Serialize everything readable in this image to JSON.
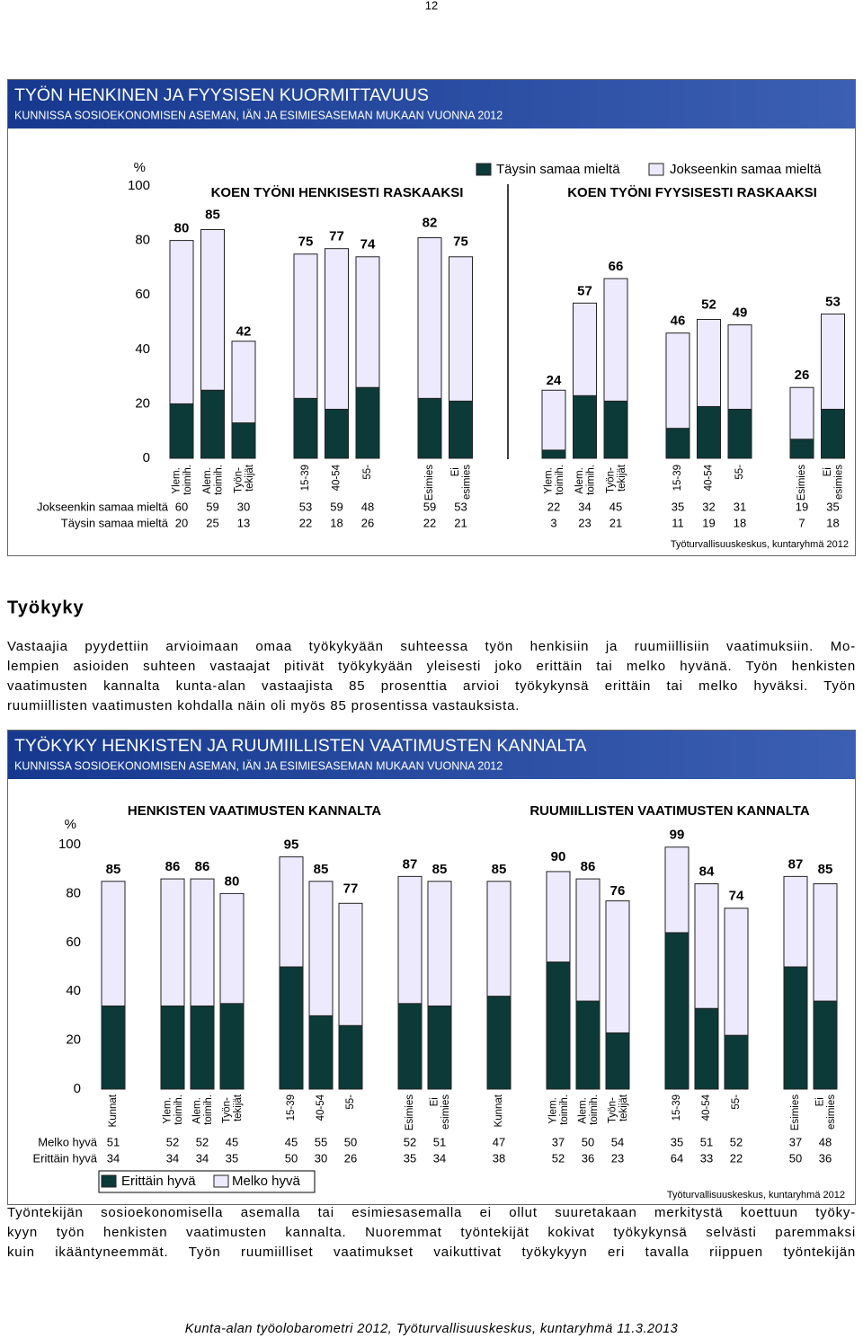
{
  "page_number": "12",
  "chart_data": [
    {
      "type": "bar",
      "stacked": true,
      "title": "TYÖN HENKINEN JA  FYYSISEN KUORMITTAVUUS",
      "subtitle": "KUNNISSA SOSIOEKONOMISEN ASEMAN, IÄN JA ESIMIESASEMAN MUKAAN VUONNA 2012",
      "y_label": "%",
      "group_titles": [
        "KOEN TYÖNI HENKISESTI RASKAAKSI",
        "KOEN TYÖNI FYYSISESTI RASKAAKSI"
      ],
      "categories": [
        "Ylem. toimih.",
        "Alem. toimih.",
        "Työn- tekijät",
        "15-39",
        "40-54",
        "55-",
        "Esimies",
        "Ei esimies",
        "Ylem. toimih.",
        "Alem. toimih.",
        "Työn- tekijät",
        "15-39",
        "40-54",
        "55-",
        "Esimies",
        "Ei esimies"
      ],
      "series": [
        {
          "name": "Täysin samaa mieltä",
          "color": "#0b3a38",
          "values": [
            20,
            25,
            13,
            22,
            18,
            26,
            22,
            21,
            3,
            23,
            21,
            11,
            19,
            18,
            7,
            18
          ]
        },
        {
          "name": "Jokseenkin samaa mieltä",
          "color": "#eceafc",
          "values": [
            60,
            59,
            30,
            53,
            59,
            48,
            59,
            53,
            22,
            34,
            45,
            35,
            32,
            31,
            19,
            35
          ]
        }
      ],
      "totals": [
        80,
        85,
        42,
        75,
        77,
        74,
        82,
        75,
        24,
        57,
        66,
        46,
        52,
        49,
        26,
        53
      ],
      "ylim": [
        0,
        100
      ],
      "yticks": [
        0,
        20,
        40,
        60,
        80,
        100
      ],
      "grid": false,
      "source": "Työturvallisuuskeskus, kuntaryhmä 2012"
    },
    {
      "type": "bar",
      "stacked": true,
      "title": "TYÖKYKY HENKISTEN JA RUUMIILLISTEN VAATIMUSTEN KANNALTA",
      "subtitle": "KUNNISSA SOSIOEKONOMISEN ASEMAN, IÄN JA ESIMIESASEMAN MUKAAN VUONNA 2012",
      "y_label": "%",
      "group_titles": [
        "HENKISTEN VAATIMUSTEN KANNALTA",
        "RUUMIILLISTEN VAATIMUSTEN KANNALTA"
      ],
      "categories": [
        "Kunnat",
        "Ylem. toimih.",
        "Alem. toimih.",
        "Työn- tekijät",
        "15-39",
        "40-54",
        "55-",
        "Esimies",
        "Ei esimies",
        "Kunnat",
        "Ylem. toimih.",
        "Alem. toimih.",
        "Työn- tekijät",
        "15-39",
        "40-54",
        "55-",
        "Esimies",
        "Ei esimies"
      ],
      "series": [
        {
          "name": "Erittäin hyvä",
          "color": "#0b3a38",
          "values": [
            34,
            34,
            34,
            35,
            50,
            30,
            26,
            35,
            34,
            38,
            52,
            36,
            23,
            64,
            33,
            22,
            50,
            36
          ]
        },
        {
          "name": "Melko hyvä",
          "color": "#eceafc",
          "values": [
            51,
            52,
            52,
            45,
            45,
            55,
            50,
            52,
            51,
            47,
            37,
            50,
            54,
            35,
            51,
            52,
            37,
            48
          ]
        }
      ],
      "totals": [
        85,
        86,
        86,
        80,
        95,
        85,
        77,
        87,
        85,
        85,
        90,
        86,
        76,
        99,
        84,
        74,
        87,
        85
      ],
      "ylim": [
        0,
        100
      ],
      "yticks": [
        0,
        20,
        40,
        60,
        80,
        100
      ],
      "grid": false,
      "source": "Työturvallisuuskeskus, kuntaryhmä 2012"
    }
  ],
  "section": {
    "heading": "Työkyky",
    "paragraph_1": [
      "Vastaajia pyydettiin arvioimaan omaa työkykyään suhteessa työn henkisiin ja ruumiillisiin vaatimuksiin. Mo-",
      "lempien asioiden suhteen vastaajat pitivät työkykyään yleisesti joko erittäin tai melko hyvänä. Työn henkisten",
      "vaatimusten kannalta kunta-alan vastaajista 85 prosenttia arvioi työkykynsä erittäin tai melko hyväksi. Työn",
      "ruumiillisten vaatimusten kohdalla näin oli myös 85 prosentissa vastauksista."
    ],
    "paragraph_2": [
      "Työntekijän sosioekonomisella asemalla tai esimiesasemalla ei ollut suuretakaan merkitystä koettuun työky-",
      "kyyn työn henkisten vaatimusten kannalta. Nuoremmat työntekijät kokivat työkykynsä selvästi paremmaksi",
      "kuin ikääntyneemmät. Työn ruumiilliset vaatimukset vaikuttivat työkykyyn eri tavalla riippuen työntekijän"
    ]
  },
  "footer": "Kunta-alan työolobarometri 2012, Työturvallisuuskeskus, kuntaryhmä 11.3.2013"
}
